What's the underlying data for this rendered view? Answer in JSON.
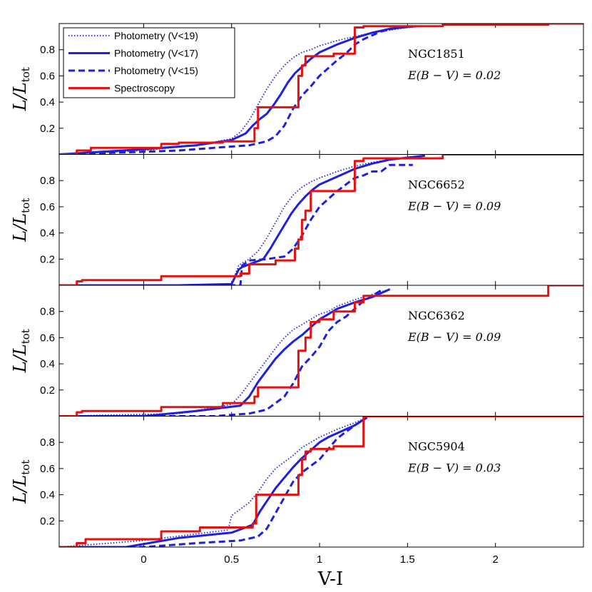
{
  "chart_data": {
    "type": "line",
    "xlabel": "V-I",
    "ylabel_main": "L/L",
    "ylabel_sub": "tot",
    "xlim": [
      -0.48,
      2.5
    ],
    "ylim": [
      0,
      1.0
    ],
    "x_ticks": [
      0,
      0.5,
      1,
      1.5,
      2
    ],
    "x_tick_labels": [
      "0",
      "0.5",
      "1",
      "1.5",
      "2"
    ],
    "y_ticks": [
      0.2,
      0.4,
      0.6,
      0.8
    ],
    "y_tick_labels": [
      "0.2",
      "0.4",
      "0.6",
      "0.8"
    ],
    "legend": [
      {
        "label": "Photometry (V<19)",
        "color": "#1f1fe0",
        "style": "dotted"
      },
      {
        "label": "Photometry (V<17)",
        "color": "#1f1fe0",
        "style": "solid"
      },
      {
        "label": "Photometry (V<15)",
        "color": "#1f1fe0",
        "style": "dashed"
      },
      {
        "label": "Spectroscopy",
        "color": "#e8100f",
        "style": "step"
      }
    ],
    "panels": [
      {
        "name": "NGC1851",
        "ebv": "E(B − V) = 0.02",
        "series": [
          {
            "name": "Photometry (V<19)",
            "style": "dotted",
            "x": [
              -0.48,
              0.0,
              0.3,
              0.5,
              0.55,
              0.6,
              0.65,
              0.7,
              0.75,
              0.8,
              0.85,
              0.9,
              0.95,
              1.0,
              1.1,
              1.2,
              1.3,
              1.4,
              1.5,
              1.6
            ],
            "y": [
              0.0,
              0.03,
              0.07,
              0.12,
              0.17,
              0.26,
              0.38,
              0.5,
              0.6,
              0.68,
              0.74,
              0.78,
              0.8,
              0.83,
              0.87,
              0.9,
              0.93,
              0.95,
              0.97,
              0.98
            ]
          },
          {
            "name": "Photometry (V<17)",
            "style": "solid",
            "x": [
              -0.48,
              0.0,
              0.3,
              0.5,
              0.58,
              0.62,
              0.66,
              0.7,
              0.74,
              0.78,
              0.82,
              0.86,
              0.9,
              0.95,
              1.0,
              1.1,
              1.2,
              1.3,
              1.4,
              1.55
            ],
            "y": [
              0.0,
              0.04,
              0.07,
              0.11,
              0.16,
              0.22,
              0.27,
              0.31,
              0.38,
              0.46,
              0.55,
              0.62,
              0.67,
              0.73,
              0.78,
              0.84,
              0.89,
              0.93,
              0.96,
              0.98
            ]
          },
          {
            "name": "Photometry (V<15)",
            "style": "dashed",
            "x": [
              -0.48,
              0.0,
              0.2,
              0.4,
              0.6,
              0.7,
              0.75,
              0.8,
              0.85,
              0.9,
              0.95,
              1.0,
              1.05,
              1.1,
              1.15,
              1.2,
              1.25,
              1.3,
              1.35,
              1.45
            ],
            "y": [
              0.0,
              0.02,
              0.03,
              0.05,
              0.07,
              0.1,
              0.14,
              0.22,
              0.35,
              0.45,
              0.52,
              0.6,
              0.66,
              0.72,
              0.77,
              0.84,
              0.88,
              0.91,
              0.94,
              0.97
            ]
          },
          {
            "name": "Spectroscopy",
            "style": "step",
            "x": [
              -0.48,
              -0.38,
              -0.3,
              0.1,
              0.2,
              0.35,
              0.45,
              0.6,
              0.63,
              0.65,
              0.85,
              0.88,
              0.9,
              0.92,
              0.95,
              1.08,
              1.2,
              1.25,
              1.7,
              2.3,
              2.5
            ],
            "y": [
              0.0,
              0.03,
              0.05,
              0.08,
              0.09,
              0.09,
              0.1,
              0.1,
              0.2,
              0.36,
              0.36,
              0.6,
              0.68,
              0.75,
              0.75,
              0.77,
              0.97,
              0.98,
              0.99,
              1.0,
              1.0
            ]
          }
        ]
      },
      {
        "name": "NGC6652",
        "ebv": "E(B − V) = 0.09",
        "series": [
          {
            "name": "Photometry (V<19)",
            "style": "dotted",
            "x": [
              -0.48,
              0.2,
              0.5,
              0.54,
              0.56,
              0.6,
              0.65,
              0.7,
              0.75,
              0.8,
              0.85,
              0.9,
              0.95,
              1.0,
              1.1,
              1.2,
              1.3,
              1.4,
              1.5,
              1.6
            ],
            "y": [
              0.0,
              0.0,
              0.01,
              0.15,
              0.17,
              0.2,
              0.26,
              0.36,
              0.48,
              0.6,
              0.69,
              0.75,
              0.79,
              0.82,
              0.87,
              0.91,
              0.94,
              0.96,
              0.98,
              0.99
            ]
          },
          {
            "name": "Photometry (V<17)",
            "style": "solid",
            "x": [
              -0.48,
              0.2,
              0.5,
              0.54,
              0.56,
              0.62,
              0.68,
              0.72,
              0.76,
              0.8,
              0.84,
              0.88,
              0.92,
              0.96,
              1.0,
              1.1,
              1.2,
              1.3,
              1.4,
              1.6
            ],
            "y": [
              0.0,
              0.0,
              0.01,
              0.12,
              0.14,
              0.17,
              0.2,
              0.28,
              0.37,
              0.46,
              0.55,
              0.62,
              0.68,
              0.73,
              0.77,
              0.83,
              0.89,
              0.93,
              0.96,
              0.99
            ]
          },
          {
            "name": "Photometry (V<15)",
            "style": "dashed",
            "x": [
              -0.48,
              0.3,
              0.55,
              0.56,
              0.6,
              0.7,
              0.8,
              0.85,
              0.9,
              0.95,
              1.0,
              1.05,
              1.1,
              1.15,
              1.2,
              1.25,
              1.3,
              1.35,
              1.4,
              1.53
            ],
            "y": [
              0.0,
              0.0,
              0.0,
              0.15,
              0.19,
              0.2,
              0.22,
              0.28,
              0.38,
              0.5,
              0.6,
              0.66,
              0.72,
              0.77,
              0.82,
              0.84,
              0.87,
              0.87,
              0.92,
              0.92
            ]
          },
          {
            "name": "Spectroscopy",
            "style": "step",
            "x": [
              -0.48,
              -0.38,
              -0.35,
              0.1,
              0.55,
              0.6,
              0.75,
              0.86,
              0.88,
              0.9,
              0.92,
              0.95,
              1.0,
              1.08,
              1.2,
              1.25,
              1.7,
              2.5
            ],
            "y": [
              0.0,
              0.03,
              0.04,
              0.07,
              0.09,
              0.16,
              0.19,
              0.28,
              0.35,
              0.5,
              0.57,
              0.72,
              0.72,
              0.72,
              0.95,
              0.97,
              1.0,
              1.0
            ]
          }
        ]
      },
      {
        "name": "NGC6362",
        "ebv": "E(B − V) = 0.09",
        "series": [
          {
            "name": "Photometry (V<19)",
            "style": "dotted",
            "x": [
              -0.48,
              0.2,
              0.5,
              0.55,
              0.6,
              0.65,
              0.7,
              0.75,
              0.8,
              0.85,
              0.9,
              0.95,
              1.0,
              1.05,
              1.1,
              1.2,
              1.3,
              1.4
            ],
            "y": [
              0.0,
              0.02,
              0.09,
              0.16,
              0.25,
              0.34,
              0.43,
              0.52,
              0.6,
              0.66,
              0.7,
              0.74,
              0.78,
              0.8,
              0.84,
              0.89,
              0.93,
              0.97
            ]
          },
          {
            "name": "Photometry (V<17)",
            "style": "solid",
            "x": [
              -0.48,
              0.0,
              0.3,
              0.55,
              0.6,
              0.65,
              0.7,
              0.75,
              0.8,
              0.85,
              0.9,
              0.95,
              1.0,
              1.05,
              1.1,
              1.2,
              1.3,
              1.4
            ],
            "y": [
              0.0,
              0.0,
              0.04,
              0.08,
              0.15,
              0.26,
              0.35,
              0.44,
              0.51,
              0.57,
              0.62,
              0.68,
              0.74,
              0.78,
              0.82,
              0.87,
              0.91,
              0.97
            ]
          },
          {
            "name": "Photometry (V<15)",
            "style": "dashed",
            "x": [
              -0.48,
              0.4,
              0.6,
              0.7,
              0.75,
              0.8,
              0.85,
              0.9,
              0.95,
              1.0,
              1.05,
              1.1,
              1.15,
              1.2,
              1.25,
              1.3,
              1.36
            ],
            "y": [
              0.0,
              0.0,
              0.02,
              0.05,
              0.1,
              0.15,
              0.25,
              0.38,
              0.45,
              0.53,
              0.65,
              0.72,
              0.76,
              0.82,
              0.88,
              0.92,
              0.97
            ]
          },
          {
            "name": "Spectroscopy",
            "style": "step",
            "x": [
              -0.48,
              -0.38,
              -0.35,
              0.1,
              0.45,
              0.63,
              0.65,
              0.86,
              0.88,
              0.92,
              0.95,
              1.0,
              1.08,
              1.2,
              1.25,
              1.4,
              2.3,
              2.5
            ],
            "y": [
              0.0,
              0.03,
              0.04,
              0.07,
              0.1,
              0.15,
              0.22,
              0.22,
              0.5,
              0.6,
              0.72,
              0.74,
              0.8,
              0.87,
              0.92,
              0.92,
              1.0,
              1.0
            ]
          }
        ]
      },
      {
        "name": "NGC5904",
        "ebv": "E(B − V) = 0.03",
        "series": [
          {
            "name": "Photometry (V<19)",
            "style": "dotted",
            "x": [
              -0.48,
              0.0,
              0.3,
              0.48,
              0.5,
              0.55,
              0.6,
              0.65,
              0.7,
              0.75,
              0.8,
              0.85,
              0.9,
              0.95,
              1.0,
              1.1,
              1.2,
              1.27
            ],
            "y": [
              0.0,
              0.05,
              0.1,
              0.13,
              0.24,
              0.29,
              0.34,
              0.42,
              0.52,
              0.6,
              0.65,
              0.7,
              0.76,
              0.8,
              0.84,
              0.9,
              0.95,
              0.99
            ]
          },
          {
            "name": "Photometry (V<17)",
            "style": "solid",
            "x": [
              -0.48,
              -0.1,
              0.2,
              0.5,
              0.58,
              0.62,
              0.66,
              0.7,
              0.75,
              0.8,
              0.85,
              0.9,
              0.95,
              1.0,
              1.05,
              1.1,
              1.2,
              1.27
            ],
            "y": [
              0.0,
              0.0,
              0.07,
              0.11,
              0.15,
              0.17,
              0.27,
              0.35,
              0.45,
              0.53,
              0.61,
              0.68,
              0.74,
              0.8,
              0.84,
              0.87,
              0.93,
              0.99
            ]
          },
          {
            "name": "Photometry (V<15)",
            "style": "dashed",
            "x": [
              -0.48,
              0.0,
              0.3,
              0.55,
              0.65,
              0.7,
              0.75,
              0.8,
              0.85,
              0.9,
              0.95,
              1.0,
              1.05,
              1.1,
              1.15,
              1.2,
              1.27
            ],
            "y": [
              0.0,
              0.0,
              0.03,
              0.05,
              0.08,
              0.14,
              0.26,
              0.38,
              0.5,
              0.57,
              0.62,
              0.67,
              0.75,
              0.83,
              0.88,
              0.93,
              0.99
            ]
          },
          {
            "name": "Spectroscopy",
            "style": "step",
            "x": [
              -0.48,
              -0.38,
              -0.33,
              0.08,
              0.1,
              0.32,
              0.62,
              0.64,
              0.86,
              0.88,
              0.9,
              0.92,
              0.95,
              1.08,
              1.2,
              1.25,
              2.3,
              2.5
            ],
            "y": [
              0.0,
              0.03,
              0.06,
              0.06,
              0.12,
              0.15,
              0.18,
              0.4,
              0.4,
              0.55,
              0.67,
              0.73,
              0.75,
              0.77,
              0.77,
              1.0,
              1.0,
              1.0
            ]
          }
        ]
      }
    ]
  }
}
